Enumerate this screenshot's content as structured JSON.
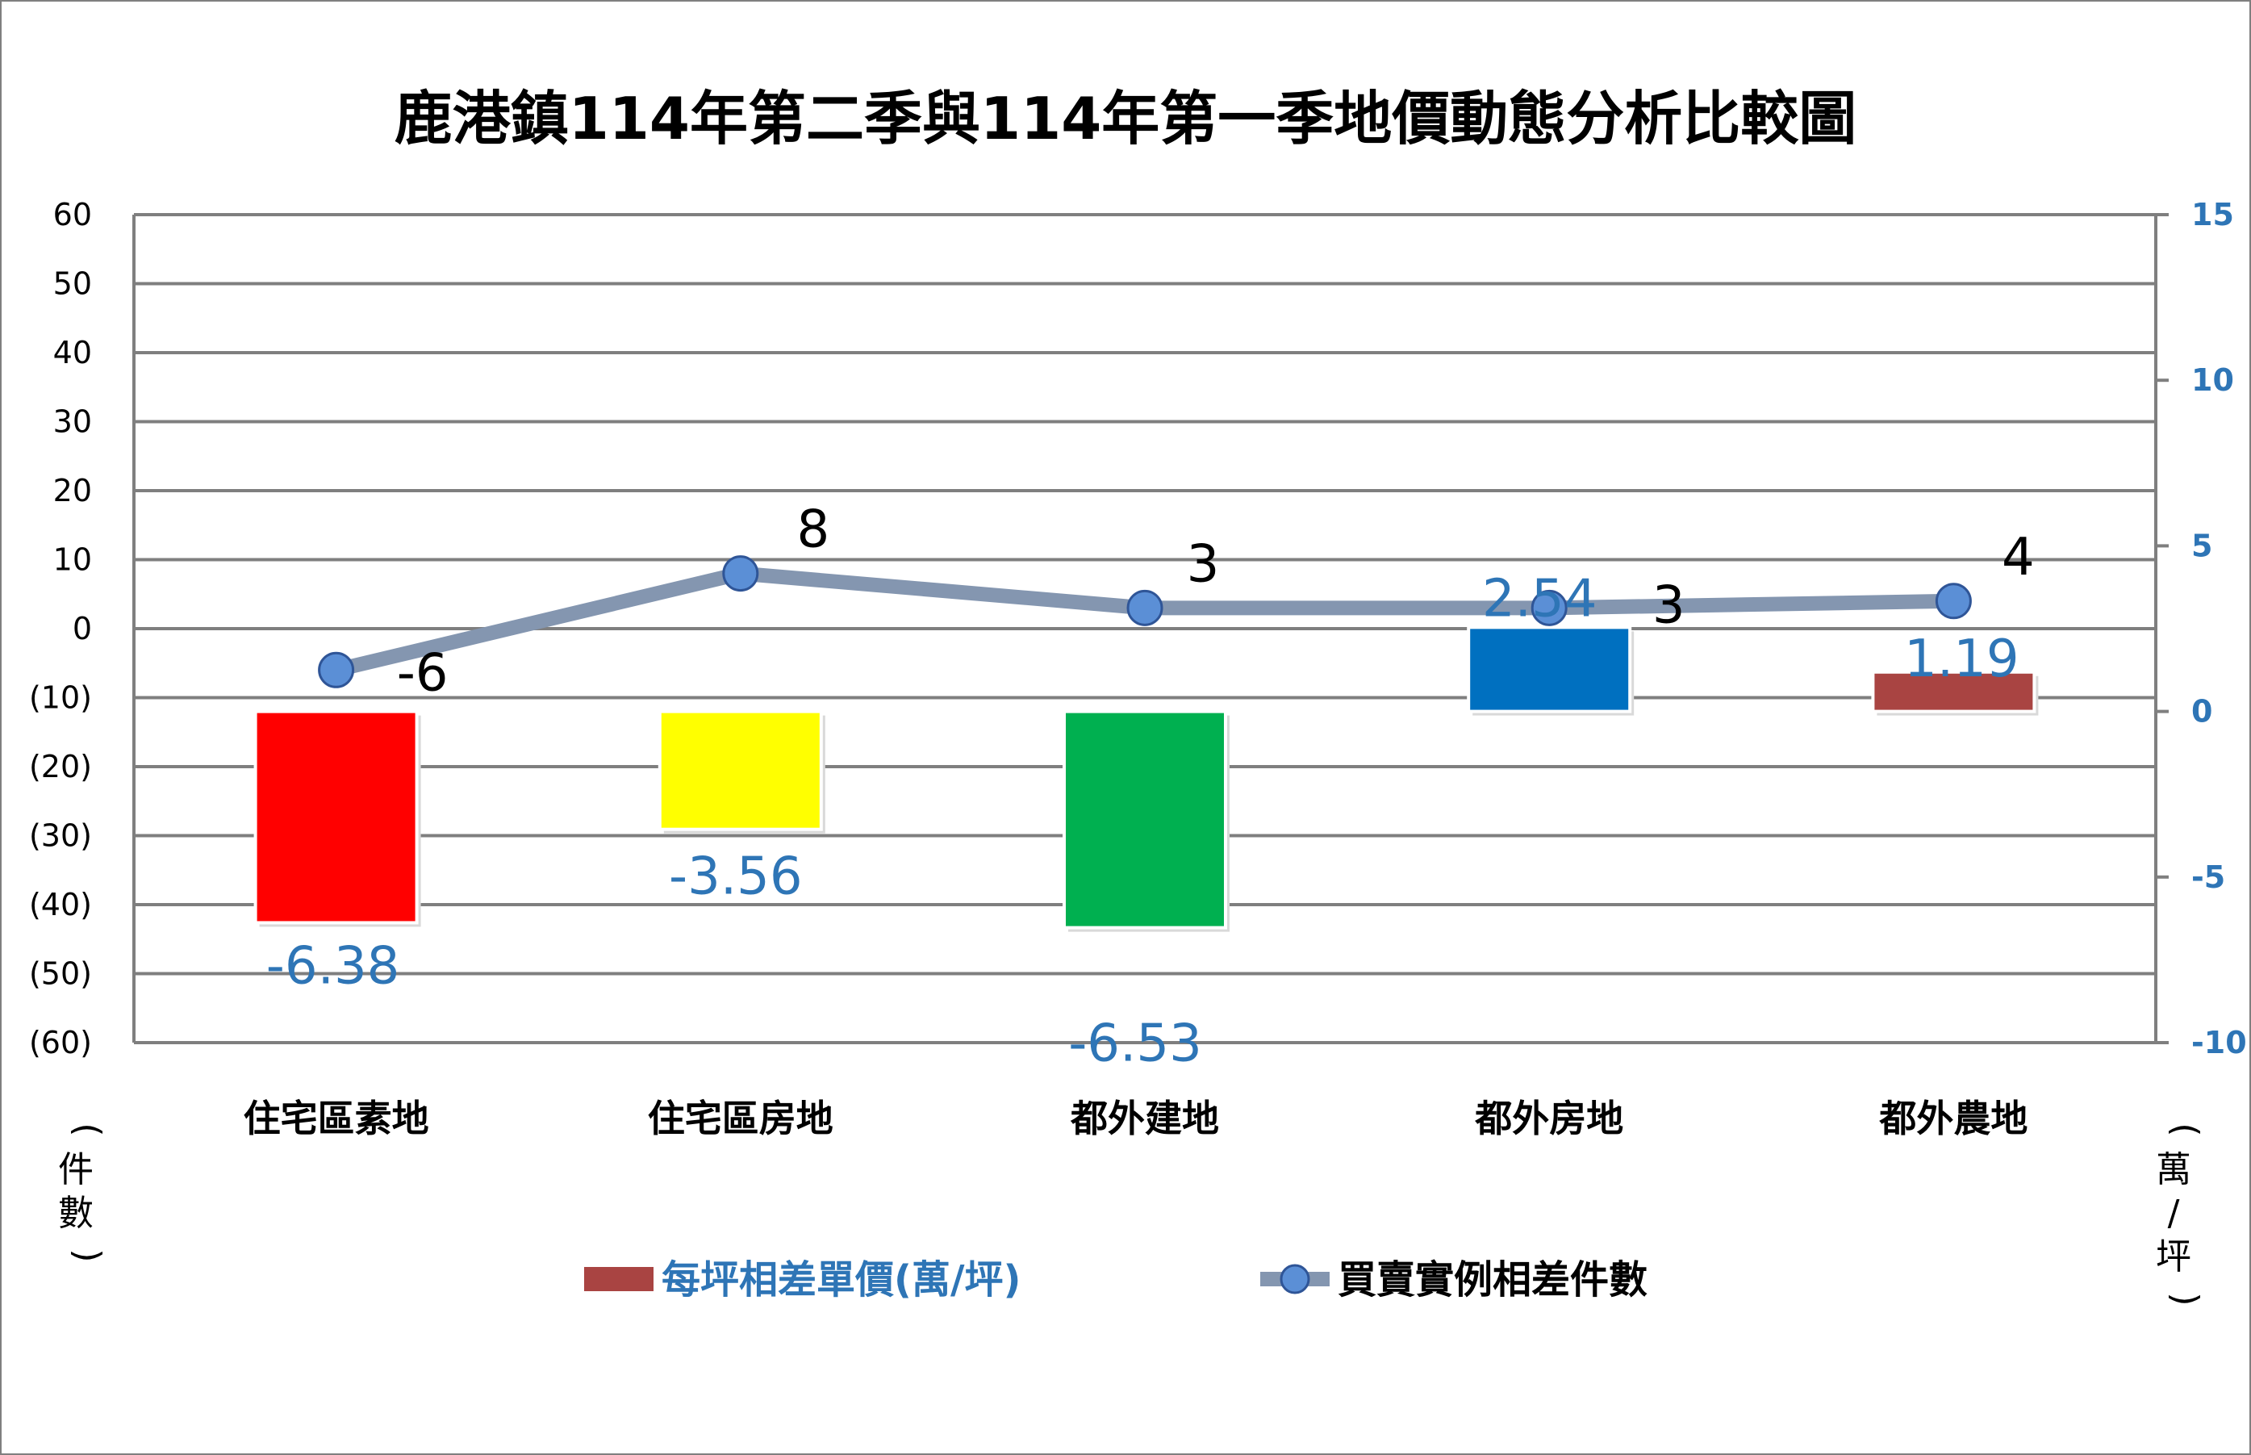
{
  "chart_data": {
    "type": "bar",
    "title": "鹿港鎮114年第二季與114年第一季地價動態分析比較圖",
    "categories": [
      "住宅區素地",
      "住宅區房地",
      "都外建地",
      "都外房地",
      "都外農地"
    ],
    "ylabel_left": "件數",
    "ylabel_right": "萬/坪",
    "y_left": {
      "min": -60,
      "max": 60,
      "ticks": [
        "(60)",
        "(50)",
        "(40)",
        "(30)",
        "(20)",
        "(10)",
        "0",
        "10",
        "20",
        "30",
        "40",
        "50",
        "60"
      ]
    },
    "y_right": {
      "min": -10,
      "max": 15,
      "ticks": [
        "-10",
        "-5",
        "0",
        "5",
        "10",
        "15"
      ]
    },
    "grid": true,
    "legend_position": "bottom",
    "series": [
      {
        "name": "每坪相差單價(萬/坪)",
        "type": "bar",
        "axis": "right",
        "values": [
          -6.38,
          -3.56,
          -6.53,
          2.54,
          1.19
        ],
        "labels": [
          "-6.38",
          "-3.56",
          "-6.53",
          "2.54",
          "1.19"
        ],
        "bar_colors": [
          "#ff0000",
          "#ffff00",
          "#00b050",
          "#0070c0",
          "#a94442"
        ],
        "legend_color": "#a94442"
      },
      {
        "name": "買賣實例相差件數",
        "type": "line",
        "axis": "left",
        "values": [
          -6,
          8,
          3,
          3,
          4
        ],
        "labels": [
          "-6",
          "8",
          "3",
          "3",
          "4"
        ],
        "line_color": "#8496b0",
        "marker_color": "#5b8fd6"
      }
    ]
  }
}
